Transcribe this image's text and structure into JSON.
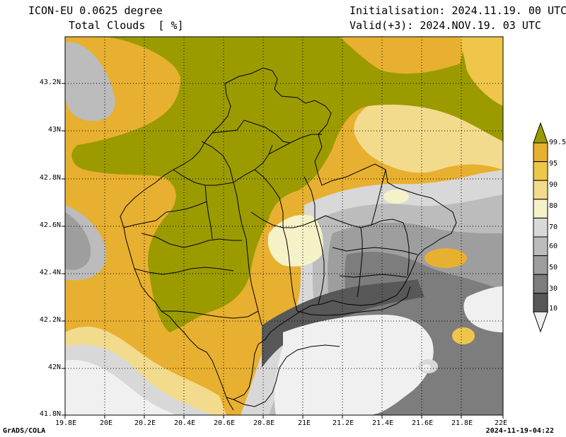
{
  "header": {
    "model": "ICON-EU 0.0625 degree",
    "field": "Total Clouds  [ %]",
    "init": "Initialisation: 2024.11.19. 00 UTC",
    "valid": "Valid(+3): 2024.NOV.19. 03 UTC"
  },
  "axes": {
    "y_ticks": [
      "43.2N",
      "43N",
      "42.8N",
      "42.6N",
      "42.4N",
      "42.2N",
      "42N",
      "41.8N"
    ],
    "x_ticks": [
      "19.8E",
      "20E",
      "20.2E",
      "20.4E",
      "20.6E",
      "20.8E",
      "21E",
      "21.2E",
      "21.4E",
      "21.6E",
      "21.8E",
      "22E"
    ]
  },
  "legend": {
    "levels": [
      "99.5",
      "95",
      "90",
      "80",
      "70",
      "60",
      "50",
      "30",
      "10"
    ],
    "colors": [
      "#9b9b00",
      "#e8b030",
      "#f0c64a",
      "#f3db8e",
      "#f5f2c8",
      "#d8d8d8",
      "#bcbcbc",
      "#9e9e9e",
      "#7d7d7d",
      "#585858",
      "#f0f0f0"
    ]
  },
  "footer": {
    "left": "GrADS/COLA",
    "right": "2024-11-19-04:22"
  }
}
